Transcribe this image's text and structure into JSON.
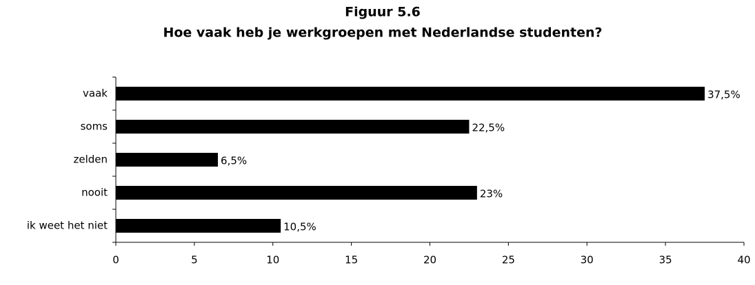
{
  "chart_data": {
    "type": "bar",
    "orientation": "horizontal",
    "title": "Figuur 5.6",
    "subtitle": "Hoe vaak heb je werkgroepen met Nederlandse studenten?",
    "categories": [
      "vaak",
      "soms",
      "zelden",
      "nooit",
      "ik weet het niet"
    ],
    "values": [
      37.5,
      22.5,
      6.5,
      23,
      10.5
    ],
    "value_labels": [
      "37,5%",
      "22,5%",
      "6,5%",
      "23%",
      "10,5%"
    ],
    "color": "#000000",
    "xlim": [
      0,
      40
    ],
    "xticks": [
      0,
      5,
      10,
      15,
      20,
      25,
      30,
      35,
      40
    ],
    "grid": false
  }
}
